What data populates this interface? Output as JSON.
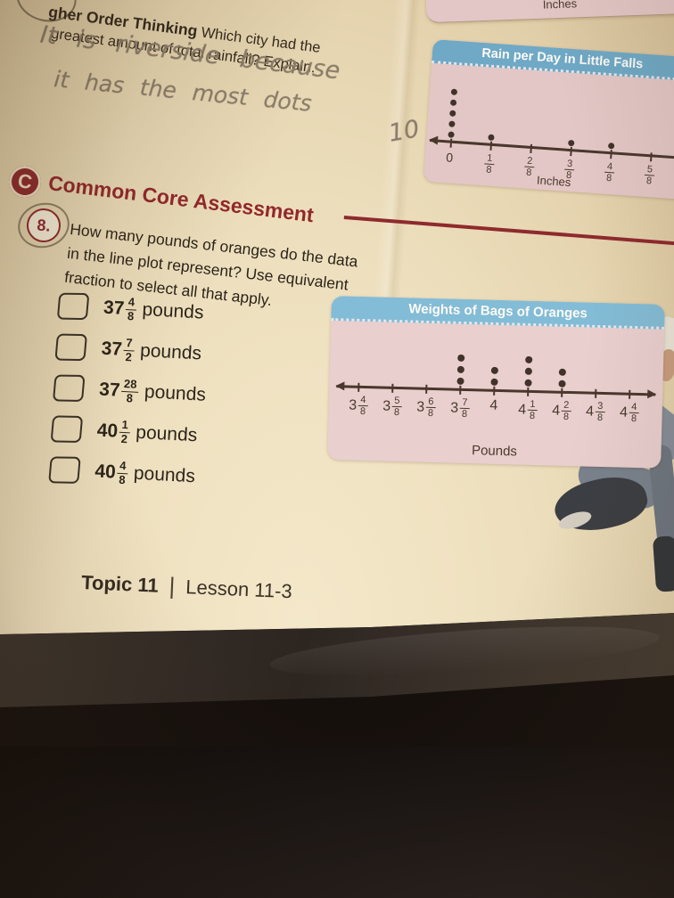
{
  "colors": {
    "accent_red": "#8e2a2e",
    "band_blue_rain": "#6fa9c6",
    "band_blue_oranges": "#83bcd6",
    "plot_pink": "#e6caca",
    "pencil_gray": "#8b7e6b",
    "paper_cream": "#eddfbd"
  },
  "higher_order": {
    "heading_partial": "gher Order Thinking",
    "question_rest": "Which city had the",
    "question_line2": "greatest amount of total rainfall? Explain.",
    "handwriting_line1": "It is riverside because",
    "handwriting_line2": "it has the most dots",
    "handwriting_mark": "10"
  },
  "chart_data": {
    "previous_plot": {
      "type": "line_plot",
      "xlabel": "Inches"
    },
    "rain": {
      "type": "line_plot",
      "title": "Rain per Day in Little Falls",
      "xlabel": "Inches",
      "points": [
        {
          "label": "0",
          "whole": "0",
          "dots": 5
        },
        {
          "label": "1/8",
          "num": "1",
          "den": "8",
          "dots": 1
        },
        {
          "label": "2/8",
          "num": "2",
          "den": "8",
          "dots": 0
        },
        {
          "label": "3/8",
          "num": "3",
          "den": "8",
          "dots": 1
        },
        {
          "label": "4/8",
          "num": "4",
          "den": "8",
          "dots": 1
        },
        {
          "label": "5/8",
          "num": "5",
          "den": "8",
          "dots": 0
        }
      ]
    },
    "oranges": {
      "type": "line_plot",
      "title": "Weights of Bags of Oranges",
      "xlabel": "Pounds",
      "points": [
        {
          "label": "3 4/8",
          "whole": "3",
          "num": "4",
          "den": "8",
          "dots": 0
        },
        {
          "label": "3 5/8",
          "whole": "3",
          "num": "5",
          "den": "8",
          "dots": 0
        },
        {
          "label": "3 6/8",
          "whole": "3",
          "num": "6",
          "den": "8",
          "dots": 0
        },
        {
          "label": "3 7/8",
          "whole": "3",
          "num": "7",
          "den": "8",
          "dots": 3
        },
        {
          "label": "4",
          "whole": "4",
          "dots": 2
        },
        {
          "label": "4 1/8",
          "whole": "4",
          "num": "1",
          "den": "8",
          "dots": 3
        },
        {
          "label": "4 2/8",
          "whole": "4",
          "num": "2",
          "den": "8",
          "dots": 2
        },
        {
          "label": "4 3/8",
          "whole": "4",
          "num": "3",
          "den": "8",
          "dots": 0
        },
        {
          "label": "4 4/8",
          "whole": "4",
          "num": "4",
          "den": "8",
          "dots": 0
        }
      ]
    }
  },
  "assessment": {
    "section_title": "Common Core Assessment",
    "question_number": "8.",
    "question_lines": [
      "How many pounds of oranges do the data",
      "in the line plot represent? Use equivalent",
      "fraction to select all that apply."
    ],
    "options": [
      {
        "whole": "37",
        "num": "4",
        "den": "8",
        "suffix": "pounds"
      },
      {
        "whole": "37",
        "num": "7",
        "den": "2",
        "suffix": "pounds"
      },
      {
        "whole": "37",
        "num": "28",
        "den": "8",
        "suffix": "pounds"
      },
      {
        "whole": "40",
        "num": "1",
        "den": "2",
        "suffix": "pounds"
      },
      {
        "whole": "40",
        "num": "4",
        "den": "8",
        "suffix": "pounds"
      }
    ]
  },
  "footer": {
    "topic": "Topic 11",
    "separator": "|",
    "lesson": "Lesson 11-3",
    "copyright_mark": "©"
  }
}
